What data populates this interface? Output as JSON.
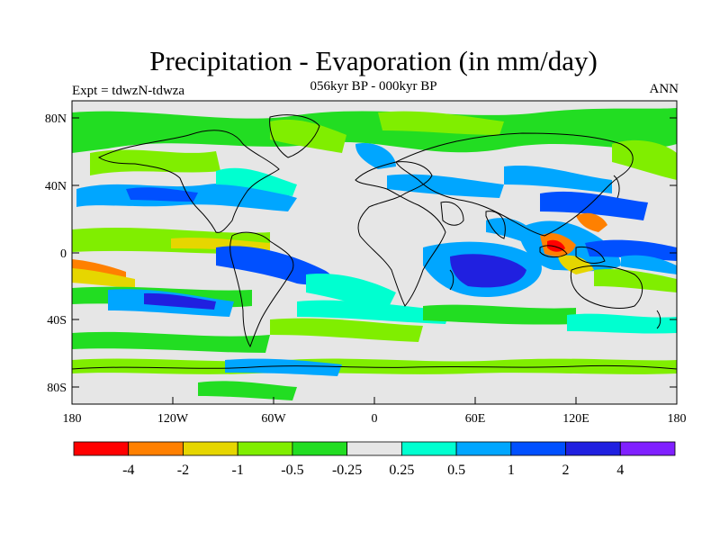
{
  "title": "Precipitation - Evaporation (in mm/day)",
  "subtitle": "056kyr BP - 000kyr BP",
  "experiment": "Expt = tdwzN-tdwza",
  "season": "ANN",
  "lat_ticks": [
    "80N",
    "40N",
    "0",
    "40S",
    "80S"
  ],
  "lon_ticks": [
    "180",
    "120W",
    "60W",
    "0",
    "60E",
    "120E",
    "180"
  ],
  "colorbar": {
    "colors": [
      "#ff0000",
      "#ff8000",
      "#e6d600",
      "#80ee00",
      "#22dd22",
      "#e6e6e6",
      "#00ffd0",
      "#00a6ff",
      "#0050ff",
      "#2020e0",
      "#8020ff"
    ],
    "labels": [
      "-4",
      "-2",
      "-1",
      "-0.5",
      "-0.25",
      "0.25",
      "0.5",
      "1",
      "2",
      "4"
    ]
  }
}
